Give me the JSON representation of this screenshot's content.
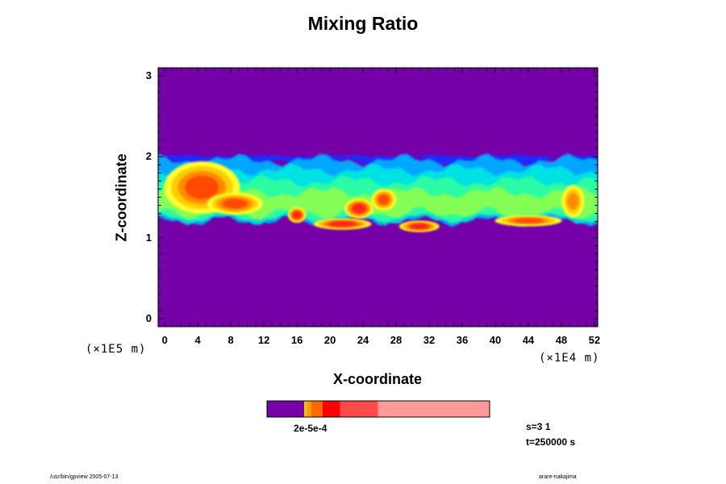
{
  "chart_data": {
    "type": "heatmap",
    "title": "Mixing Ratio",
    "xlabel": "X-coordinate",
    "ylabel": "Z-coordinate",
    "x_unit": "(×1E4 m)",
    "y_unit": "(×1E5 m)",
    "xlim": [
      -0.8,
      52.4
    ],
    "ylim": [
      -0.1,
      3.1
    ],
    "x_ticks": [
      "0",
      "4",
      "8",
      "12",
      "16",
      "20",
      "24",
      "28",
      "32",
      "36",
      "40",
      "44",
      "48",
      "52"
    ],
    "y_ticks": [
      "0",
      "1",
      "2",
      "3"
    ],
    "background_color": "#7500a8",
    "layer": {
      "z_bottom": 1.2,
      "z_top": 2.0
    },
    "blobs": [
      {
        "x": 4.5,
        "z": 1.62,
        "rx": 3.4,
        "rz": 0.24,
        "level": 0.78
      },
      {
        "x": 8.5,
        "z": 1.42,
        "rx": 2.5,
        "rz": 0.1,
        "level": 0.82
      },
      {
        "x": 16.0,
        "z": 1.28,
        "rx": 0.8,
        "rz": 0.07,
        "level": 0.92
      },
      {
        "x": 21.5,
        "z": 1.17,
        "rx": 2.6,
        "rz": 0.05,
        "level": 0.9
      },
      {
        "x": 23.5,
        "z": 1.36,
        "rx": 1.3,
        "rz": 0.09,
        "level": 0.92
      },
      {
        "x": 26.5,
        "z": 1.47,
        "rx": 1.1,
        "rz": 0.1,
        "level": 0.88
      },
      {
        "x": 30.8,
        "z": 1.14,
        "rx": 1.8,
        "rz": 0.05,
        "level": 0.9
      },
      {
        "x": 44.0,
        "z": 1.21,
        "rx": 3.0,
        "rz": 0.05,
        "level": 0.88
      },
      {
        "x": 49.4,
        "z": 1.45,
        "rx": 1.0,
        "rz": 0.15,
        "level": 0.6
      }
    ],
    "colorbar": {
      "colors": [
        "#7500a8",
        "#f0c000",
        "#ff9900",
        "#ff6a00",
        "#ff0000",
        "#ff4a4a",
        "#ff9a9a"
      ],
      "fractions": [
        0.167,
        0.014,
        0.018,
        0.05,
        0.08,
        0.17,
        0.501
      ],
      "label": "2e-5e-4"
    },
    "info": {
      "s": "s=3 1",
      "t": "t=250000 s"
    },
    "footer_left": "/usr/bin/gpview 2005-07-13",
    "footer_right": "arare-nakajima"
  }
}
